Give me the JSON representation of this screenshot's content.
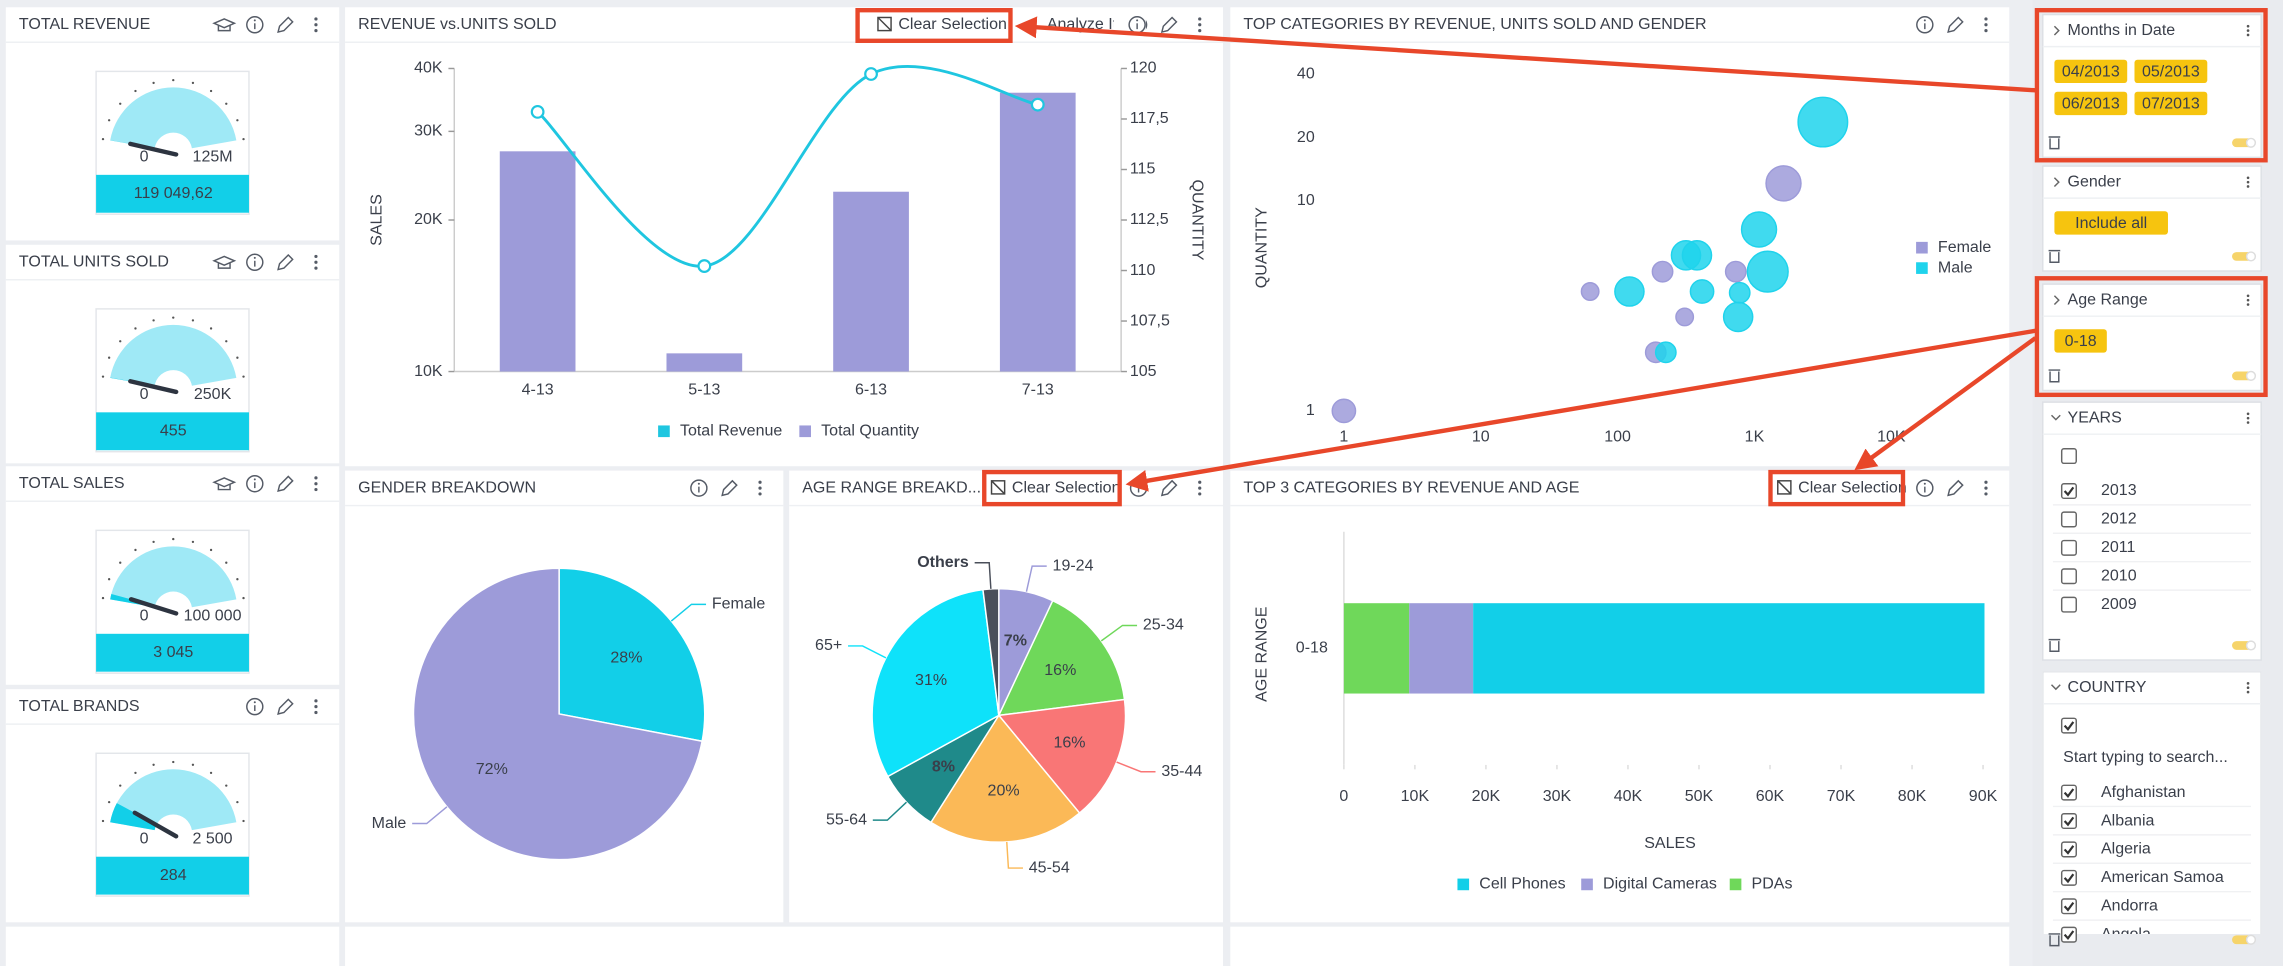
{
  "kpis": [
    {
      "title": "TOTAL REVENUE",
      "value": 119049.62,
      "value_label": "119 049,62",
      "min": 0,
      "max": 125000000,
      "max_label": "125M"
    },
    {
      "title": "TOTAL UNITS SOLD",
      "value": 455,
      "min": 0,
      "max": 250000,
      "max_label": "250K"
    },
    {
      "title": "TOTAL SALES",
      "value": 3045,
      "value_label": "3 045",
      "min": 0,
      "max": 100000,
      "max_label": "100 000"
    },
    {
      "title": "TOTAL BRANDS",
      "value": 284,
      "min": 0,
      "max": 2500,
      "max_label": "2 500"
    }
  ],
  "revenue_chart": {
    "type": "bar_line",
    "title": "REVENUE vs.UNITS SOLD",
    "clear_button": "Clear Selection",
    "analyze_button": "Analyze It",
    "categories": [
      "4-13",
      "5-13",
      "6-13",
      "7-13"
    ],
    "series": [
      {
        "name": "Total Revenue",
        "color": "#1fc6e0",
        "type": "line",
        "values": [
          32800,
          16200,
          39000,
          33900
        ]
      },
      {
        "name": "Total Quantity",
        "color": "#9d9bd9",
        "type": "bar",
        "axis": "y2",
        "values": [
          115.9,
          105.9,
          113.9,
          118.8
        ]
      }
    ],
    "ylabel": "SALES",
    "y2label": "QUANTITY",
    "log_y": true,
    "ylim": [
      10000,
      40000
    ],
    "yticks": [
      {
        "value": 10000,
        "label": "10K"
      },
      {
        "value": 20000,
        "label": "20K"
      },
      {
        "value": 30000,
        "label": "30K"
      },
      {
        "value": 40000,
        "label": "40K"
      }
    ],
    "y2lim": [
      105,
      120
    ],
    "y2ticks": [
      105,
      {
        "value": 107.5,
        "label": "107,5"
      },
      110,
      {
        "value": 112.5,
        "label": "112,5"
      },
      115,
      {
        "value": 117.5,
        "label": "117,5"
      },
      120
    ]
  },
  "bubble_chart": {
    "type": "bubble",
    "title": "TOP CATEGORIES BY REVENUE, UNITS SOLD AND GENDER",
    "ylabel": "QUANTITY",
    "log_x": true,
    "log_y": true,
    "xlim": [
      1,
      10000
    ],
    "xticks": [
      1,
      10,
      100,
      {
        "value": 1000,
        "label": "1K"
      },
      {
        "value": 10000,
        "label": "10K"
      }
    ],
    "ylim": [
      1,
      40
    ],
    "yticks": [
      1,
      10,
      20,
      40
    ],
    "series": [
      {
        "name": "Female",
        "color": "#9d9bd9",
        "x": [
          1,
          1630,
          730,
          213,
          309,
          63,
          190
        ],
        "values": [
          1,
          12.1,
          4.6,
          4.6,
          2.8,
          3.7,
          1.9
        ],
        "sizes": [
          8,
          12,
          7,
          7,
          6,
          6,
          7
        ]
      },
      {
        "name": "Male",
        "color": "#1fd3ec",
        "x": [
          3160,
          1080,
          1250,
          780,
          760,
          414,
          316,
          380,
          122,
          225
        ],
        "values": [
          23.7,
          7.3,
          4.6,
          3.65,
          2.8,
          3.7,
          5.5,
          5.5,
          3.7,
          1.9
        ],
        "sizes": [
          17,
          12,
          14,
          7,
          10,
          8,
          10,
          10,
          10,
          7
        ]
      }
    ]
  },
  "gender_chart": {
    "type": "pie",
    "title": "GENDER BREAKDOWN",
    "categories": [
      "Female",
      "Male"
    ],
    "values": [
      28,
      72
    ],
    "value_labels": [
      "28%",
      "72%"
    ],
    "colors": [
      "#12cfe8",
      "#9d9bd9"
    ]
  },
  "age_chart": {
    "type": "pie",
    "title": "AGE RANGE BREAKD...",
    "clear_button": "Clear Selection",
    "categories": [
      "19-24",
      "25-34",
      "35-44",
      "45-54",
      "55-64",
      "65+",
      "Others"
    ],
    "values": [
      7,
      16,
      16,
      20,
      8,
      31,
      2
    ],
    "value_labels": [
      "7%",
      "16%",
      "16%",
      "20%",
      "8%",
      "31%",
      null
    ],
    "colors": [
      "#9d9bd9",
      "#6fd85a",
      "#f97676",
      "#fbb957",
      "#1f8a8a",
      "#0ee2fa",
      "#4a4f5a"
    ]
  },
  "top3_chart": {
    "type": "stacked_hbar",
    "title": "TOP 3 CATEGORIES BY REVENUE AND AGE",
    "clear_button": "Clear Selection",
    "categories": [
      "0-18"
    ],
    "xlabel": "SALES",
    "ylabel": "AGE RANGE",
    "xlim": [
      0,
      90000
    ],
    "xticks": [
      0,
      {
        "value": 10000,
        "label": "10K"
      },
      {
        "value": 20000,
        "label": "20K"
      },
      {
        "value": 30000,
        "label": "30K"
      },
      {
        "value": 40000,
        "label": "40K"
      },
      {
        "value": 50000,
        "label": "50K"
      },
      {
        "value": 60000,
        "label": "60K"
      },
      {
        "value": 70000,
        "label": "70K"
      },
      {
        "value": 80000,
        "label": "80K"
      },
      {
        "value": 90000,
        "label": "90K"
      }
    ],
    "series": [
      {
        "name": "PDAs",
        "color": "#6fd85a",
        "values": [
          9200
        ]
      },
      {
        "name": "Digital Cameras",
        "color": "#9d9bd9",
        "values": [
          9000
        ]
      },
      {
        "name": "Cell Phones",
        "color": "#12cfe8",
        "values": [
          72000
        ]
      }
    ]
  },
  "filters": [
    {
      "title": "Months in Date",
      "chips": [
        "04/2013",
        "05/2013",
        "06/2013",
        "07/2013"
      ]
    },
    {
      "title": "Gender",
      "chips": [
        "Include all"
      ]
    },
    {
      "title": "Age Range",
      "chips": [
        "0-18"
      ]
    },
    {
      "title": "YEARS",
      "all_checked": false,
      "options": [
        {
          "label": "2013",
          "checked": true
        },
        {
          "label": "2012",
          "checked": false
        },
        {
          "label": "2011",
          "checked": false
        },
        {
          "label": "2010",
          "checked": false
        },
        {
          "label": "2009",
          "checked": false
        }
      ]
    },
    {
      "title": "COUNTRY",
      "all_checked": true,
      "search_placeholder": "Start typing to search...",
      "options": [
        {
          "label": "Afghanistan",
          "checked": true
        },
        {
          "label": "Albania",
          "checked": true
        },
        {
          "label": "Algeria",
          "checked": true
        },
        {
          "label": "American Samoa",
          "checked": true
        },
        {
          "label": "Andorra",
          "checked": true
        },
        {
          "label": "Angola",
          "checked": true
        }
      ]
    }
  ]
}
